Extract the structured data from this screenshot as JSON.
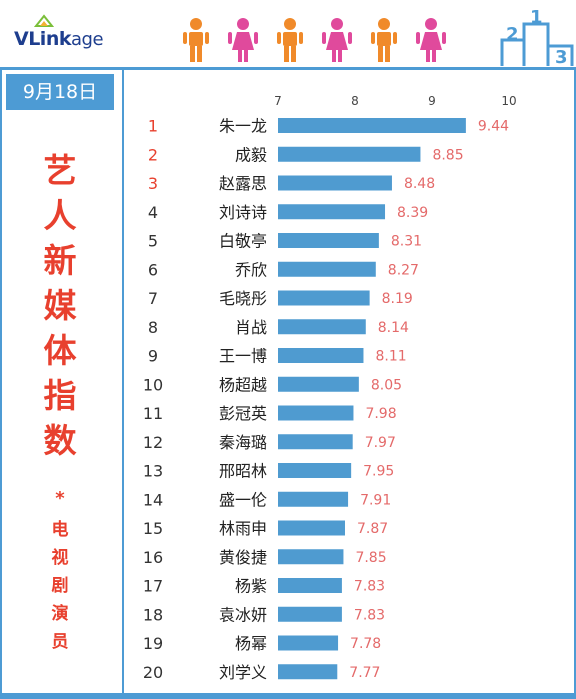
{
  "logo": {
    "prefix": "VLink",
    "suffix": "age"
  },
  "date_label": "9月18日",
  "vertical_title": [
    "艺",
    "人",
    "新",
    "媒",
    "体",
    "指",
    "数"
  ],
  "title_separator": "*",
  "vertical_subtitle": [
    "电",
    "视",
    "剧",
    "演",
    "员"
  ],
  "podium_numbers": [
    "2",
    "1",
    "3"
  ],
  "colors": {
    "bar": "#4f9bd0",
    "value_label": "#e46a6a",
    "rank_top": "#e8402e",
    "rank_rest": "#333333",
    "frame": "#4d9bd4",
    "man": "#f08a2a",
    "woman": "#e04a9c"
  },
  "people_icons": [
    "man-icon",
    "woman-icon",
    "man-icon",
    "woman-icon",
    "man-icon",
    "woman-icon"
  ],
  "chart_data": {
    "type": "bar",
    "orientation": "horizontal",
    "title": "",
    "xlabel": "",
    "ylabel": "",
    "xlim": [
      7,
      10
    ],
    "x_ticks": [
      "7",
      "8",
      "9",
      "10"
    ],
    "grid": false,
    "ranks": [
      "1",
      "2",
      "3",
      "4",
      "5",
      "6",
      "7",
      "8",
      "9",
      "10",
      "11",
      "12",
      "13",
      "14",
      "15",
      "16",
      "17",
      "18",
      "19",
      "20"
    ],
    "categories": [
      "朱一龙",
      "成毅",
      "赵露思",
      "刘诗诗",
      "白敬亭",
      "乔欣",
      "毛晓彤",
      "肖战",
      "王一博",
      "杨超越",
      "彭冠英",
      "秦海璐",
      "邢昭林",
      "盛一伦",
      "林雨申",
      "黄俊捷",
      "杨紫",
      "袁冰妍",
      "杨幂",
      "刘学义"
    ],
    "values": [
      9.44,
      8.85,
      8.48,
      8.39,
      8.31,
      8.27,
      8.19,
      8.14,
      8.11,
      8.05,
      7.98,
      7.97,
      7.95,
      7.91,
      7.87,
      7.85,
      7.83,
      7.83,
      7.78,
      7.77
    ],
    "value_labels": [
      "9.44",
      "8.85",
      "8.48",
      "8.39",
      "8.31",
      "8.27",
      "8.19",
      "8.14",
      "8.11",
      "8.05",
      "7.98",
      "7.97",
      "7.95",
      "7.91",
      "7.87",
      "7.85",
      "7.83",
      "7.83",
      "7.78",
      "7.77"
    ]
  }
}
